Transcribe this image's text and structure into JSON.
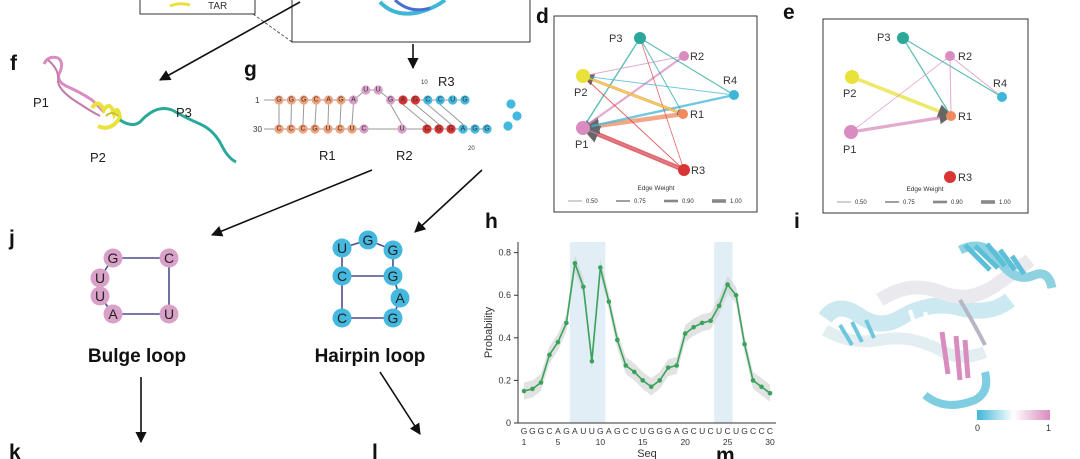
{
  "colors": {
    "p1": "#d98cbf",
    "p2": "#e8e23a",
    "p3": "#2aa89a",
    "r1": "#f08a5d",
    "r2": "#d98cbf",
    "r3": "#d93535",
    "r4": "#3fb6d8",
    "orange_nuc": "#f2a27a",
    "pink_nuc": "#d9a0c8",
    "red_nuc": "#d93535",
    "cyan_nuc": "#45b8e0",
    "line_green": "#3aa35b",
    "band_blue": "#cfe2f0"
  },
  "panels": {
    "d": "d",
    "e": "e",
    "f": "f",
    "g": "g",
    "h": "h",
    "i": "i",
    "j": "j",
    "k": "k",
    "l": "l",
    "m": "m"
  },
  "top": {
    "tar_label": "TAR"
  },
  "f": {
    "p1": "P1",
    "p2": "P2",
    "p3": "P3"
  },
  "g": {
    "num_1": "1",
    "num_30": "30",
    "num_10": "10",
    "num_20": "20",
    "top_strand": [
      "G",
      "G",
      "G",
      "C",
      "A",
      "G",
      "A",
      "U",
      "U",
      "G",
      "A",
      "G",
      "C",
      "C",
      "U",
      "G"
    ],
    "bottom_strand": [
      "C",
      "C",
      "C",
      "G",
      "U",
      "C",
      "U",
      "C",
      "U",
      "C",
      "G",
      "G",
      "A",
      "G",
      "G"
    ],
    "bulge": [
      "U",
      "U"
    ],
    "r1": "R1",
    "r2": "R2",
    "r3": "R3"
  },
  "network_d": {
    "nodes": [
      "P3",
      "R2",
      "P2",
      "R4",
      "R1",
      "P1",
      "R3"
    ],
    "legend_title": "Edge Weight",
    "legend": [
      "0.50",
      "0.75",
      "0.90",
      "1.00"
    ]
  },
  "network_e": {
    "nodes": [
      "P3",
      "R2",
      "R4",
      "P2",
      "R1",
      "P1",
      "R3"
    ],
    "legend_title": "Edge Weight",
    "legend": [
      "0.50",
      "0.75",
      "0.90",
      "1.00"
    ]
  },
  "j": {
    "title": "Bulge loop",
    "nodes": [
      "G",
      "C",
      "U",
      "U",
      "A",
      "U"
    ]
  },
  "hairpin": {
    "title": "Hairpin loop",
    "nodes": [
      "U",
      "G",
      "G",
      "C",
      "G",
      "A",
      "C",
      "G"
    ]
  },
  "chart_data": {
    "type": "line",
    "xlabel": "Seq",
    "ylabel": "Probability",
    "x_ticks": [
      "1",
      "5",
      "10",
      "15",
      "20",
      "25",
      "30"
    ],
    "sequence": [
      "G",
      "G",
      "G",
      "C",
      "A",
      "G",
      "A",
      "U",
      "U",
      "G",
      "A",
      "G",
      "C",
      "C",
      "U",
      "G",
      "G",
      "G",
      "A",
      "G",
      "C",
      "U",
      "C",
      "U",
      "C",
      "U",
      "G",
      "C",
      "C",
      "C"
    ],
    "y_ticks": [
      "0",
      "0.2",
      "0.4",
      "0.6",
      "0.8"
    ],
    "ylim": [
      0,
      0.85
    ],
    "x": [
      1,
      2,
      3,
      4,
      5,
      6,
      7,
      8,
      9,
      10,
      11,
      12,
      13,
      14,
      15,
      16,
      17,
      18,
      19,
      20,
      21,
      22,
      23,
      24,
      25,
      26,
      27,
      28,
      29,
      30
    ],
    "values": [
      0.15,
      0.16,
      0.19,
      0.32,
      0.38,
      0.47,
      0.75,
      0.64,
      0.29,
      0.73,
      0.57,
      0.39,
      0.27,
      0.24,
      0.2,
      0.17,
      0.2,
      0.26,
      0.27,
      0.42,
      0.45,
      0.47,
      0.48,
      0.55,
      0.65,
      0.6,
      0.37,
      0.2,
      0.17,
      0.14
    ],
    "highlight_ranges": [
      [
        7,
        10
      ],
      [
        24,
        25
      ]
    ],
    "grid": false
  },
  "i": {
    "scale_min": "0",
    "scale_max": "1"
  }
}
